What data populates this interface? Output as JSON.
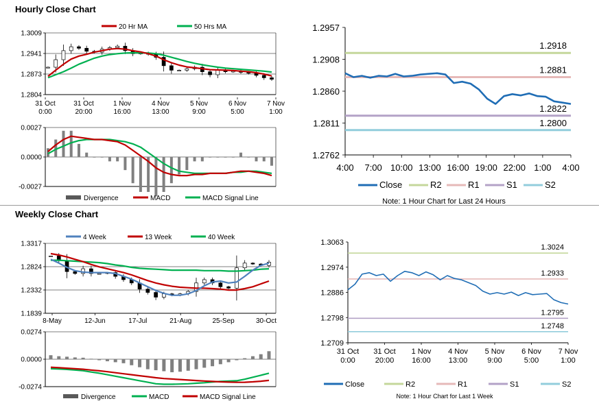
{
  "hourly_title": "Hourly Close Chart",
  "weekly_title": "Weekly Close Chart",
  "colors": {
    "red": "#c00000",
    "green": "#00b050",
    "blue": "#4f81bd",
    "close": "#1f6db5",
    "r2": "#c4d79b",
    "r1": "#e6b9b8",
    "s1": "#b3a2c7",
    "s2": "#92cddc",
    "bar": "#808080"
  },
  "chart_data": [
    {
      "id": "hourly_price",
      "type": "candlestick",
      "legend": [
        "20 Hr MA",
        "50 Hrs MA"
      ],
      "y_ticks": [
        "1.3009",
        "1.2941",
        "1.2873",
        "1.2804"
      ],
      "ylim": [
        1.2804,
        1.3009
      ],
      "x_labels": [
        [
          "31 Oct",
          "0:00"
        ],
        [
          "31 Oct",
          "20:00"
        ],
        [
          "1 Nov",
          "16:00"
        ],
        [
          "4 Nov",
          "13:00"
        ],
        [
          "5 Nov",
          "9:00"
        ],
        [
          "6 Nov",
          "5:00"
        ],
        [
          "7 Nov",
          "1:00"
        ]
      ],
      "close": [
        1.2895,
        1.292,
        1.295,
        1.2963,
        1.2958,
        1.2948,
        1.2945,
        1.2955,
        1.296,
        1.2965,
        1.295,
        1.294,
        1.2942,
        1.2938,
        1.2928,
        1.29,
        1.2885,
        1.2885,
        1.289,
        1.2895,
        1.288,
        1.287,
        1.2885,
        1.288,
        1.2882,
        1.2878,
        1.2875,
        1.2868,
        1.286,
        1.2855
      ],
      "ma20": [
        1.2865,
        1.2885,
        1.2905,
        1.2922,
        1.2932,
        1.2938,
        1.2945,
        1.295,
        1.2955,
        1.2957,
        1.2955,
        1.295,
        1.2946,
        1.294,
        1.2932,
        1.292,
        1.291,
        1.2902,
        1.2896,
        1.2893,
        1.289,
        1.2887,
        1.2886,
        1.2885,
        1.2884,
        1.2882,
        1.288,
        1.2877,
        1.2872,
        1.2866
      ],
      "ma50": [
        1.286,
        1.287,
        1.288,
        1.2892,
        1.2905,
        1.2915,
        1.2925,
        1.2932,
        1.2937,
        1.294,
        1.2942,
        1.2943,
        1.2943,
        1.2942,
        1.294,
        1.2935,
        1.2928,
        1.2921,
        1.2914,
        1.2908,
        1.2903,
        1.2899,
        1.2895,
        1.2892,
        1.289,
        1.2888,
        1.2886,
        1.2884,
        1.2882,
        1.2879
      ]
    },
    {
      "id": "hourly_macd",
      "type": "bar+line",
      "legend": [
        "Divergence",
        "MACD",
        "MACD Signal Line"
      ],
      "y_ticks": [
        "0.0027",
        "0.0000",
        "-0.0027"
      ],
      "ylim": [
        -0.0027,
        0.0027
      ],
      "macd": [
        0.0005,
        0.0011,
        0.0016,
        0.0019,
        0.0018,
        0.0017,
        0.0016,
        0.0016,
        0.0015,
        0.0014,
        0.0011,
        0.0006,
        0.0001,
        -0.0004,
        -0.001,
        -0.0014,
        -0.0016,
        -0.0017,
        -0.0017,
        -0.0016,
        -0.0016,
        -0.0015,
        -0.0015,
        -0.0015,
        -0.0014,
        -0.0013,
        -0.0013,
        -0.0014,
        -0.0015,
        -0.0017
      ],
      "signal": [
        0.0003,
        0.0007,
        0.001,
        0.0013,
        0.0015,
        0.0016,
        0.0016,
        0.0016,
        0.0016,
        0.0015,
        0.0014,
        0.0012,
        0.0009,
        0.0004,
        -0.0001,
        -0.0006,
        -0.001,
        -0.0013,
        -0.0014,
        -0.0015,
        -0.0015,
        -0.0015,
        -0.0015,
        -0.0015,
        -0.0014,
        -0.0014,
        -0.0013,
        -0.0013,
        -0.0014,
        -0.0015
      ]
    },
    {
      "id": "hourly_close",
      "type": "line",
      "y_ticks": [
        "1.2957",
        "1.2908",
        "1.2860",
        "1.2811",
        "1.2762"
      ],
      "ylim": [
        1.2762,
        1.2957
      ],
      "x_labels": [
        "4:00",
        "7:00",
        "10:00",
        "13:00",
        "16:00",
        "19:00",
        "22:00",
        "1:00",
        "4:00"
      ],
      "close": [
        1.2887,
        1.2881,
        1.2883,
        1.288,
        1.2883,
        1.2882,
        1.2886,
        1.2882,
        1.2883,
        1.2885,
        1.2886,
        1.2887,
        1.2885,
        1.2872,
        1.2874,
        1.2871,
        1.2862,
        1.2848,
        1.284,
        1.2852,
        1.2855,
        1.2853,
        1.2856,
        1.2852,
        1.2851,
        1.2844,
        1.2842,
        1.284
      ],
      "levels": [
        {
          "name": "R2",
          "value": 1.2918,
          "label": "1.2918"
        },
        {
          "name": "R1",
          "value": 1.2881,
          "label": "1.2881"
        },
        {
          "name": "S1",
          "value": 1.2822,
          "label": "1.2822"
        },
        {
          "name": "S2",
          "value": 1.28,
          "label": "1.2800"
        }
      ],
      "legend": [
        "Close",
        "R2",
        "R1",
        "S1",
        "S2"
      ],
      "note": "Note: 1 Hour Chart for Last 24 Hours"
    },
    {
      "id": "weekly_price",
      "type": "candlestick",
      "legend": [
        "4 Week",
        "13 Week",
        "40 Week"
      ],
      "y_ticks": [
        "1.3317",
        "1.2824",
        "1.2332",
        "1.1839"
      ],
      "ylim": [
        1.1839,
        1.3317
      ],
      "x_labels": [
        "8-May",
        "12-Jun",
        "17-Jul",
        "21-Aug",
        "25-Sep",
        "30-Oct"
      ],
      "close": [
        1.305,
        1.295,
        1.272,
        1.268,
        1.278,
        1.268,
        1.268,
        1.27,
        1.262,
        1.255,
        1.248,
        1.235,
        1.228,
        1.218,
        1.225,
        1.222,
        1.225,
        1.23,
        1.248,
        1.255,
        1.248,
        1.24,
        1.237,
        1.28,
        1.29,
        1.288,
        1.285,
        1.292
      ],
      "w4": [
        1.298,
        1.29,
        1.281,
        1.274,
        1.271,
        1.27,
        1.27,
        1.27,
        1.268,
        1.262,
        1.256,
        1.248,
        1.24,
        1.232,
        1.226,
        1.222,
        1.222,
        1.225,
        1.232,
        1.242,
        1.25,
        1.252,
        1.248,
        1.25,
        1.262,
        1.275,
        1.285,
        1.29
      ],
      "w13": [
        1.31,
        1.307,
        1.303,
        1.298,
        1.293,
        1.287,
        1.282,
        1.278,
        1.274,
        1.27,
        1.265,
        1.259,
        1.253,
        1.248,
        1.244,
        1.241,
        1.239,
        1.238,
        1.237,
        1.237,
        1.236,
        1.235,
        1.233,
        1.233,
        1.236,
        1.24,
        1.246,
        1.252
      ],
      "w40": [
        1.296,
        1.296,
        1.295,
        1.294,
        1.293,
        1.292,
        1.291,
        1.289,
        1.286,
        1.284,
        1.281,
        1.279,
        1.278,
        1.277,
        1.276,
        1.275,
        1.275,
        1.275,
        1.275,
        1.274,
        1.274,
        1.274,
        1.273,
        1.273,
        1.274,
        1.275,
        1.277,
        1.278
      ]
    },
    {
      "id": "weekly_macd",
      "type": "bar+line",
      "legend": [
        "Divergence",
        "MACD",
        "MACD Signal Line"
      ],
      "y_ticks": [
        "0.0274",
        "0.0000",
        "-0.0274"
      ],
      "ylim": [
        -0.0274,
        0.0274
      ],
      "macd": [
        -0.0095,
        -0.0098,
        -0.0102,
        -0.0108,
        -0.0115,
        -0.0128,
        -0.014,
        -0.0155,
        -0.017,
        -0.0185,
        -0.02,
        -0.0215,
        -0.023,
        -0.0245,
        -0.025,
        -0.025,
        -0.0248,
        -0.0245,
        -0.024,
        -0.0235,
        -0.0228,
        -0.0222,
        -0.0218,
        -0.0215,
        -0.02,
        -0.018,
        -0.016,
        -0.014
      ],
      "signal": [
        -0.008,
        -0.0085,
        -0.009,
        -0.0095,
        -0.01,
        -0.0108,
        -0.0116,
        -0.0125,
        -0.0135,
        -0.0145,
        -0.0155,
        -0.0165,
        -0.0175,
        -0.0185,
        -0.0193,
        -0.0198,
        -0.0203,
        -0.0208,
        -0.0213,
        -0.0218,
        -0.0222,
        -0.0226,
        -0.0229,
        -0.0231,
        -0.023,
        -0.0226,
        -0.022,
        -0.0212
      ],
      "divergence": [
        0.004,
        0.003,
        0.0025,
        0.0018,
        0.0015,
        0.0005,
        -0.001,
        -0.002,
        -0.003,
        -0.004,
        -0.006,
        -0.008,
        -0.01,
        -0.011,
        -0.012,
        -0.013,
        -0.0125,
        -0.0115,
        -0.01,
        -0.0085,
        -0.007,
        -0.005,
        -0.003,
        -0.001,
        0.001,
        0.003,
        0.005,
        0.008
      ]
    },
    {
      "id": "weekly_close",
      "type": "line",
      "y_ticks": [
        "1.3063",
        "1.2974",
        "1.2886",
        "1.2798",
        "1.2709"
      ],
      "ylim": [
        1.2709,
        1.3063
      ],
      "x_labels": [
        [
          "31 Oct",
          "0:00"
        ],
        [
          "31 Oct",
          "20:00"
        ],
        [
          "1 Nov",
          "16:00"
        ],
        [
          "4 Nov",
          "13:00"
        ],
        [
          "5 Nov",
          "9:00"
        ],
        [
          "6 Nov",
          "5:00"
        ],
        [
          "7 Nov",
          "1:00"
        ]
      ],
      "close": [
        1.2895,
        1.2915,
        1.295,
        1.2955,
        1.2945,
        1.295,
        1.2925,
        1.2945,
        1.296,
        1.2955,
        1.2945,
        1.2958,
        1.2948,
        1.293,
        1.2945,
        1.2935,
        1.293,
        1.292,
        1.291,
        1.289,
        1.288,
        1.2885,
        1.288,
        1.2887,
        1.2875,
        1.2885,
        1.2878,
        1.288,
        1.2882,
        1.286,
        1.285,
        1.2845
      ],
      "levels": [
        {
          "name": "R2",
          "value": 1.3024,
          "label": "1.3024"
        },
        {
          "name": "R1",
          "value": 1.2933,
          "label": "1.2933"
        },
        {
          "name": "S1",
          "value": 1.2795,
          "label": "1.2795"
        },
        {
          "name": "S2",
          "value": 1.2748,
          "label": "1.2748"
        }
      ],
      "legend": [
        "Close",
        "R2",
        "R1",
        "S1",
        "S2"
      ],
      "note": "Note: 1 Hour Chart for Last 1 Week"
    }
  ]
}
